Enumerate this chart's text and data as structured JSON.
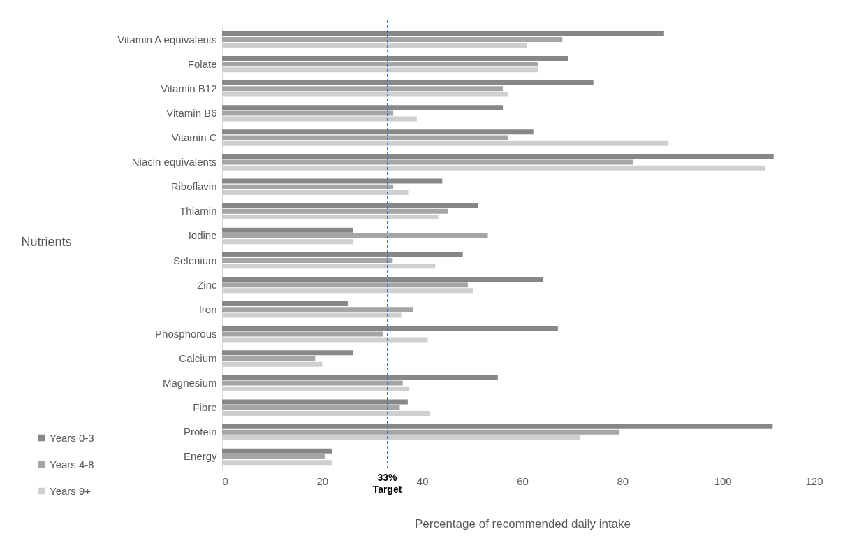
{
  "chart_data": {
    "type": "bar",
    "orientation": "horizontal",
    "categories": [
      "Vitamin A equivalents",
      "Folate",
      "Vitamin B12",
      "Vitamin B6",
      "Vitamin C",
      "Niacin equivalents",
      "Riboflavin",
      "Thiamin",
      "Iodine",
      "Selenium",
      "Zinc",
      "Iron",
      "Phosphorous",
      "Calcium",
      "Magnesium",
      "Fibre",
      "Protein",
      "Energy"
    ],
    "series": [
      {
        "name": "Years 0-3",
        "color": "#878787",
        "values": [
          88.3,
          69.1,
          74.2,
          56.1,
          62.2,
          110.2,
          44,
          51.1,
          26.1,
          48.1,
          64.2,
          25.1,
          67.1,
          26.1,
          55.1,
          37.1,
          110,
          22
        ]
      },
      {
        "name": "Years 4-8",
        "color": "#a5a5a5",
        "values": [
          68,
          63.1,
          56.1,
          34.2,
          57.2,
          82.1,
          34.2,
          45.1,
          53.1,
          34.1,
          49.1,
          38.1,
          32.1,
          18.6,
          36.1,
          35.5,
          79.4,
          20.5
        ]
      },
      {
        "name": "Years 9+",
        "color": "#cfcfcf",
        "values": [
          60.9,
          63.1,
          57.1,
          38.9,
          89.2,
          108.5,
          37.2,
          43.2,
          26.1,
          42.6,
          50.2,
          35.8,
          41.1,
          20,
          37.4,
          41.6,
          71.6,
          21.9
        ]
      }
    ],
    "xlabel": "Percentage of recommended daily intake",
    "ylabel": "Nutrients",
    "xlim": [
      0,
      120
    ],
    "xticks": [
      0,
      20,
      40,
      60,
      80,
      100,
      120
    ],
    "ref_lines": [
      {
        "axis": "x",
        "value": 33,
        "label": "33% Target",
        "color": "#4472c4",
        "line_style": "dashed"
      }
    ],
    "grid": false,
    "legend": "bottom left"
  }
}
